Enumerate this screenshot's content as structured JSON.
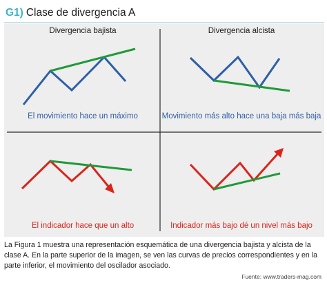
{
  "header": {
    "label": "G1)",
    "title": "Clase de divergencia A"
  },
  "quadrants": {
    "top_left": {
      "title": "Divergencia bajista",
      "caption": "El movimiento hace un máximo"
    },
    "top_right": {
      "title": "Divergencia alcista",
      "caption": "Movimiento más alto hace una baja más baja"
    },
    "bottom_left": {
      "caption": "El indicador hace que un alto"
    },
    "bottom_right": {
      "caption": "Indicador más bajo dé un nivel más bajo"
    }
  },
  "description": "La Figura 1 muestra una representación esquemática de una divergencia bajista y alcista de la clase A. En la parte superior de la imagen, se ven las curvas de precios correspondientes y en la parte inferior, el movimiento del oscilador asociado.",
  "source": "Fuente: www.traders-mag.com",
  "colors": {
    "price_line": "#2e5fa6",
    "indicator_line": "#d9251c",
    "trend_line": "#1f9a3a",
    "label_accent": "#3bb3c8",
    "panel_background": "#eeeeee",
    "divider": "#2a2a2a"
  }
}
